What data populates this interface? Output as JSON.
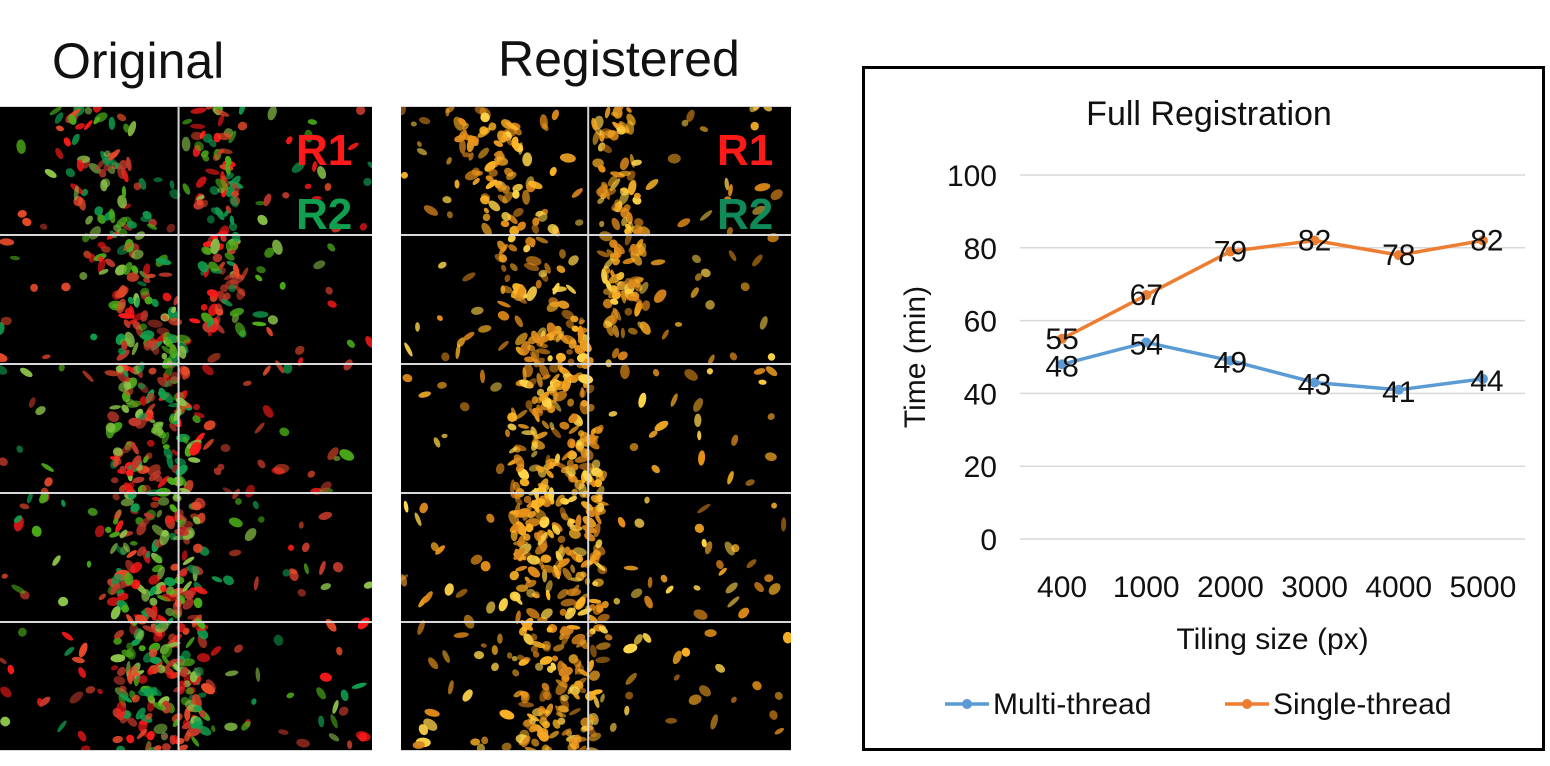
{
  "panels": {
    "original_title": "Original",
    "registered_title": "Registered",
    "channel_r1": "R1",
    "channel_r2": "R2"
  },
  "colors": {
    "r1": "#ff1a1a",
    "r2": "#10a050",
    "multi": "#5b9bd5",
    "single": "#ed7d31",
    "grid": "#d9d9d9"
  },
  "chart_data": {
    "type": "line",
    "title": "Full Registration",
    "xlabel": "Tiling size (px)",
    "ylabel": "Time (min)",
    "categories": [
      "400",
      "1000",
      "2000",
      "3000",
      "4000",
      "5000"
    ],
    "ylim": [
      0,
      100
    ],
    "yticks": [
      0,
      20,
      40,
      60,
      80,
      100
    ],
    "grid": true,
    "legend": "bottom",
    "series": [
      {
        "name": "Multi-thread",
        "values": [
          48,
          54,
          49,
          43,
          41,
          44
        ],
        "color": "#5b9bd5"
      },
      {
        "name": "Single-thread",
        "values": [
          55,
          67,
          79,
          82,
          78,
          82
        ],
        "color": "#ed7d31"
      }
    ]
  }
}
